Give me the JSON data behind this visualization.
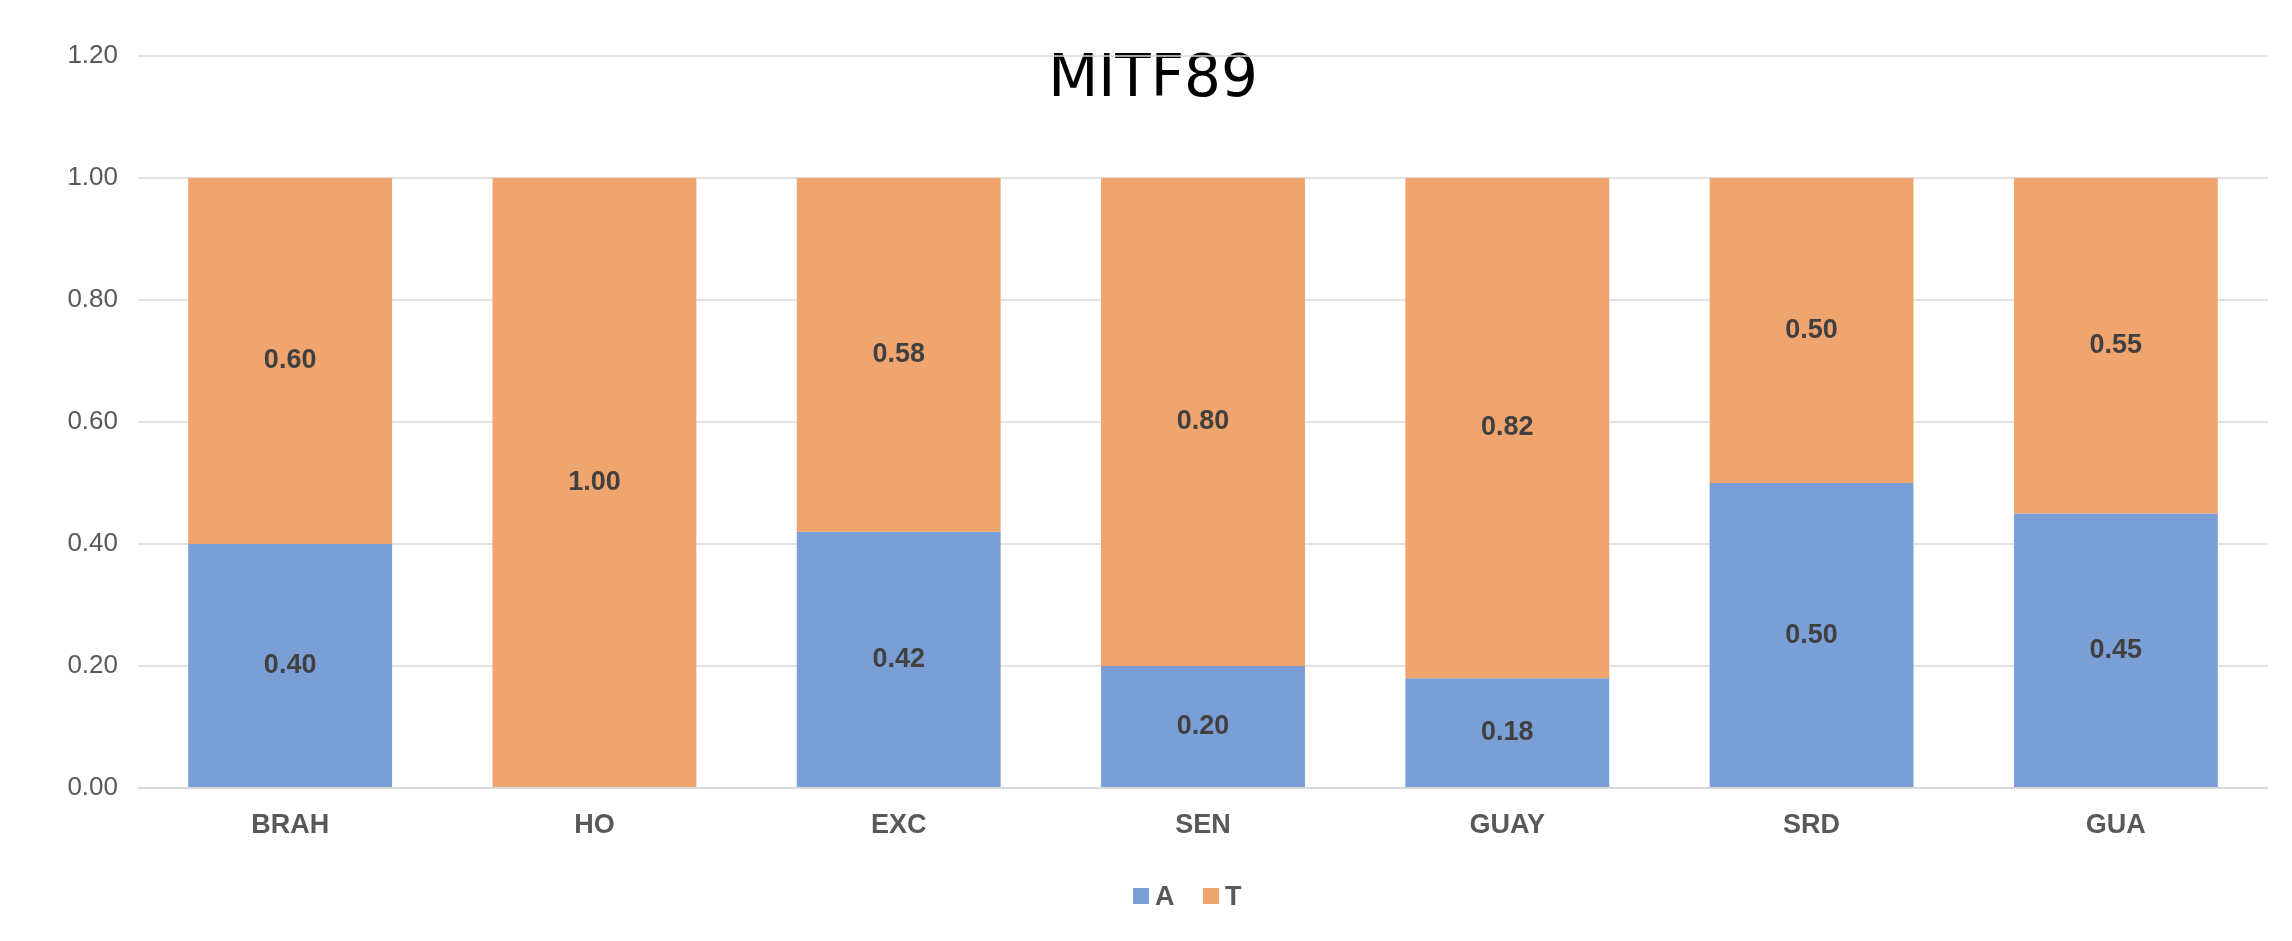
{
  "chart_data": {
    "type": "bar",
    "title": "MITF89",
    "categories": [
      "BRAH",
      "HO",
      "EXC",
      "SEN",
      "GUAY",
      "SRD",
      "GUA"
    ],
    "stacked": true,
    "series": [
      {
        "name": "A",
        "color": "#7a9fd6",
        "values": [
          0.4,
          0,
          0.42,
          0.2,
          0.18,
          0.5,
          0.45
        ],
        "value_labels": [
          "0.40",
          null,
          "0.42",
          "0.20",
          "0.18",
          "0.50",
          "0.45"
        ]
      },
      {
        "name": "T",
        "color": "#f0a46e",
        "values": [
          0.6,
          1,
          0.58,
          0.8,
          0.82,
          0.5,
          0.55
        ],
        "value_labels": [
          "0.60",
          "1.00",
          "0.58",
          "0.80",
          "0.82",
          "0.50",
          "0.55"
        ]
      }
    ],
    "ylim": [
      0,
      1.2
    ],
    "yticks": [
      {
        "value": 0,
        "label": "0.00"
      },
      {
        "value": 0.2,
        "label": "0.20"
      },
      {
        "value": 0.4,
        "label": "0.40"
      },
      {
        "value": 0.6,
        "label": "0.60"
      },
      {
        "value": 0.8,
        "label": "0.80"
      },
      {
        "value": 1,
        "label": "1.00"
      },
      {
        "value": 1.2,
        "label": "1.20"
      }
    ],
    "grid": "y",
    "legend": "bottom"
  }
}
